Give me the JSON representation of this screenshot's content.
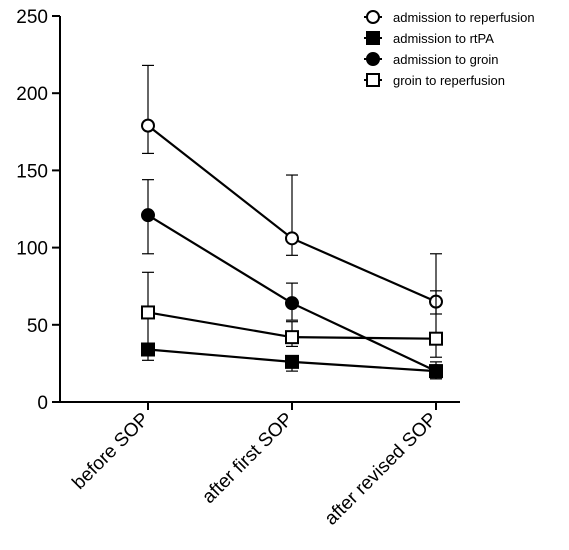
{
  "chart_data": {
    "type": "line",
    "title": "",
    "xlabel": "",
    "ylabel": "",
    "categories": [
      "before SOP",
      "after first SOP",
      "after revised SOP"
    ],
    "ylim": [
      0,
      250
    ],
    "yticks": [
      0,
      50,
      100,
      150,
      200,
      250
    ],
    "grid": false,
    "legend_position": "top-right",
    "series": [
      {
        "name": "admission to reperfusion",
        "marker": "open-circle",
        "values": [
          179,
          106,
          65
        ],
        "error_low": [
          161,
          95,
          57
        ],
        "error_high": [
          218,
          147,
          96
        ]
      },
      {
        "name": "admission to rtPA",
        "marker": "filled-square",
        "values": [
          34,
          26,
          20
        ],
        "error_low": [
          27,
          20,
          15
        ],
        "error_high": [
          38,
          30,
          24
        ]
      },
      {
        "name": "admission to groin",
        "marker": "filled-circle",
        "values": [
          121,
          64,
          20
        ],
        "error_low": [
          96,
          53,
          15
        ],
        "error_high": [
          144,
          77,
          26
        ]
      },
      {
        "name": "groin to reperfusion",
        "marker": "open-square",
        "values": [
          58,
          42,
          41
        ],
        "error_low": [
          36,
          36,
          29
        ],
        "error_high": [
          84,
          52,
          72
        ]
      }
    ]
  }
}
